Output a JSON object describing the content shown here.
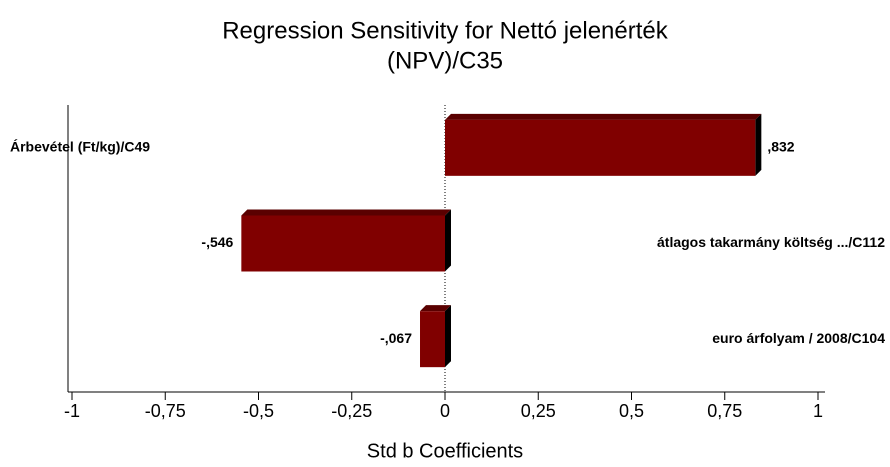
{
  "chart_data": {
    "type": "bar",
    "orientation": "horizontal",
    "title_lines": [
      "Regression Sensitivity for Nettó jelenérték",
      "(NPV)/C35"
    ],
    "x_label": "Std b Coefficients",
    "categories": [
      "Árbevétel (Ft/kg)/C49",
      "átlagos takarmány költség .../C112",
      "euro árfolyam / 2008/C104"
    ],
    "values": [
      0.832,
      -0.546,
      -0.067
    ],
    "value_labels": [
      ",832",
      "-,546",
      "-,067"
    ],
    "color": "#800000",
    "xlim": [
      -1,
      1
    ],
    "xticks": [
      -1,
      {
        "value": -0.75,
        "label": "-0,75"
      },
      {
        "value": -0.5,
        "label": "-0,5"
      },
      {
        "value": -0.25,
        "label": "-0,25"
      },
      0,
      {
        "value": 0.25,
        "label": "0,25"
      },
      {
        "value": 0.5,
        "label": "0,5"
      },
      {
        "value": 0.75,
        "label": "0,75"
      },
      1
    ]
  }
}
